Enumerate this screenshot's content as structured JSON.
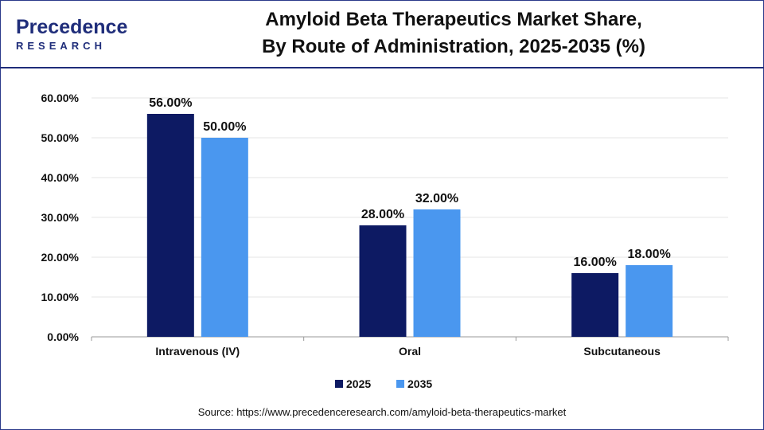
{
  "header": {
    "logo_word": "Precedence",
    "logo_sub": "RESEARCH",
    "title_line1": "Amyloid Beta Therapeutics Market Share,",
    "title_line2": "By Route of Administration, 2025-2035 (%)"
  },
  "colors": {
    "series_2025": "#0d1a63",
    "series_2035": "#4a97ef",
    "brand": "#1f2d7a",
    "grid": "#e6e6e6",
    "axis": "#999999"
  },
  "chart_data": {
    "type": "bar",
    "categories": [
      "Intravenous (IV)",
      "Oral",
      "Subcutaneous"
    ],
    "series": [
      {
        "name": "2025",
        "values": [
          56,
          28,
          16
        ]
      },
      {
        "name": "2035",
        "values": [
          50,
          32,
          18
        ]
      }
    ],
    "data_labels": [
      [
        "56.00%",
        "28.00%",
        "16.00%"
      ],
      [
        "50.00%",
        "32.00%",
        "18.00%"
      ]
    ],
    "y_ticks": [
      0,
      10,
      20,
      30,
      40,
      50,
      60
    ],
    "y_tick_labels": [
      "0.00%",
      "10.00%",
      "20.00%",
      "30.00%",
      "40.00%",
      "50.00%",
      "60.00%"
    ],
    "ylim": [
      0,
      60
    ],
    "grid": true,
    "legend": "bottom-center",
    "title": "Amyloid Beta Therapeutics Market Share, By Route of Administration, 2025-2035 (%)"
  },
  "footer": {
    "source": "Source: https://www.precedenceresearch.com/amyloid-beta-therapeutics-market"
  }
}
